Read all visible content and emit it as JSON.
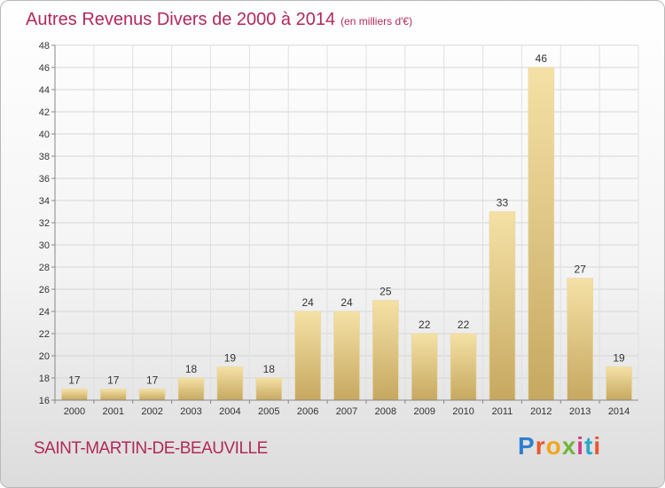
{
  "title": "Autres Revenus Divers de 2000 à 2014",
  "subtitle": "(en milliers d'€)",
  "city": "SAINT-MARTIN-DE-BEAUVILLE",
  "logo": "Proxiti",
  "colors": {
    "title": "#b2285a",
    "bar_light": "#f3dd9e",
    "bar_dark": "#c8aa64"
  },
  "chart_data": {
    "type": "bar",
    "title": "Autres Revenus Divers de 2000 à 2014",
    "subtitle": "(en milliers d'€)",
    "categories": [
      "2000",
      "2001",
      "2002",
      "2003",
      "2004",
      "2005",
      "2006",
      "2007",
      "2008",
      "2009",
      "2010",
      "2011",
      "2012",
      "2013",
      "2014"
    ],
    "values": [
      17,
      17,
      17,
      18,
      19,
      18,
      24,
      24,
      25,
      22,
      22,
      33,
      46,
      27,
      19
    ],
    "ylim": [
      16,
      48
    ],
    "yticks": [
      16,
      18,
      20,
      22,
      24,
      26,
      28,
      30,
      32,
      34,
      36,
      38,
      40,
      42,
      44,
      46,
      48
    ],
    "grid": true,
    "data_labels": true
  }
}
